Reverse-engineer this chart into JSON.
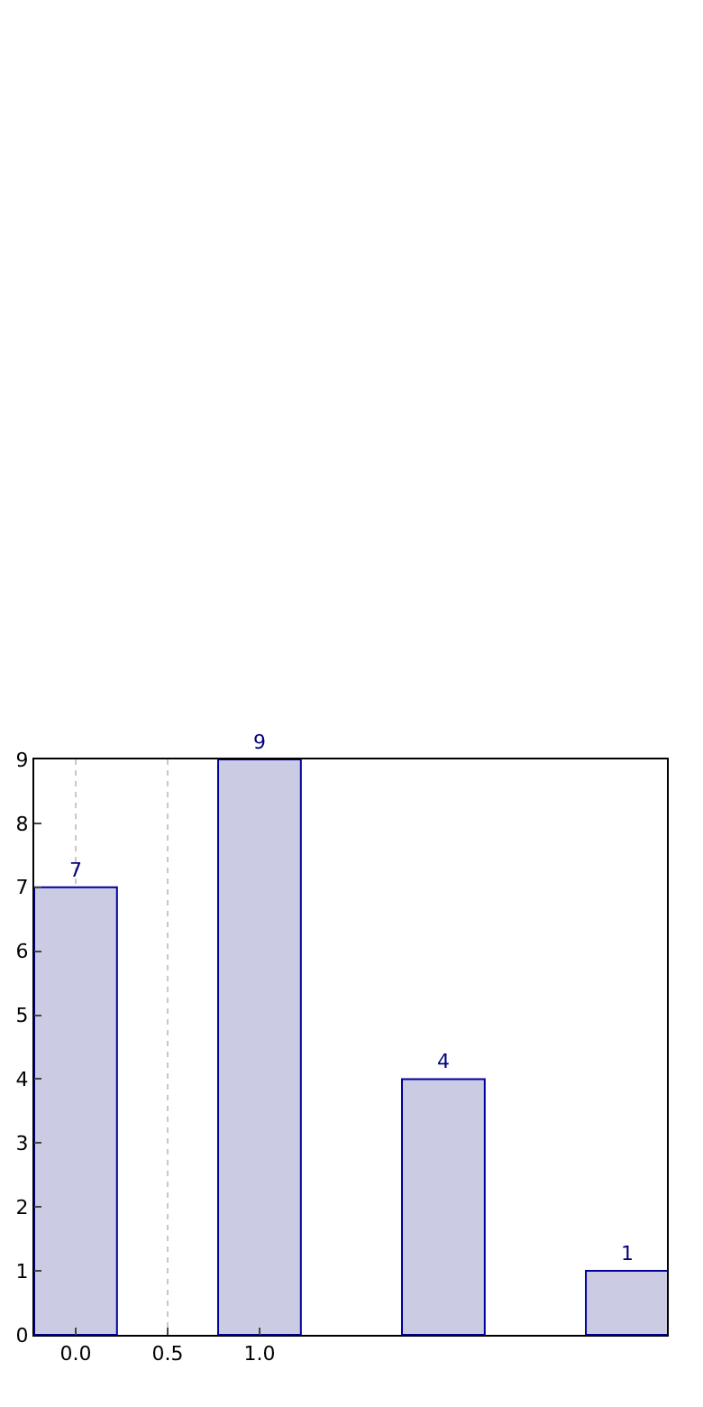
{
  "chart_data": {
    "type": "bar",
    "x": [
      0,
      1,
      2,
      3
    ],
    "values": [
      7,
      9,
      4,
      1
    ],
    "color": "#cbcce4",
    "data_labels": true,
    "xlim": [
      -0.225,
      3.216
    ],
    "xticks": [
      {
        "value": 0,
        "label": "0.0"
      },
      {
        "value": 0.5,
        "label": "0.5"
      },
      {
        "value": 1,
        "label": "1.0"
      }
    ],
    "ylim": [
      0,
      9
    ],
    "yticks": [
      0,
      1,
      2,
      3,
      4,
      5,
      6,
      7,
      8,
      9
    ],
    "grid": "x",
    "legend": false
  }
}
